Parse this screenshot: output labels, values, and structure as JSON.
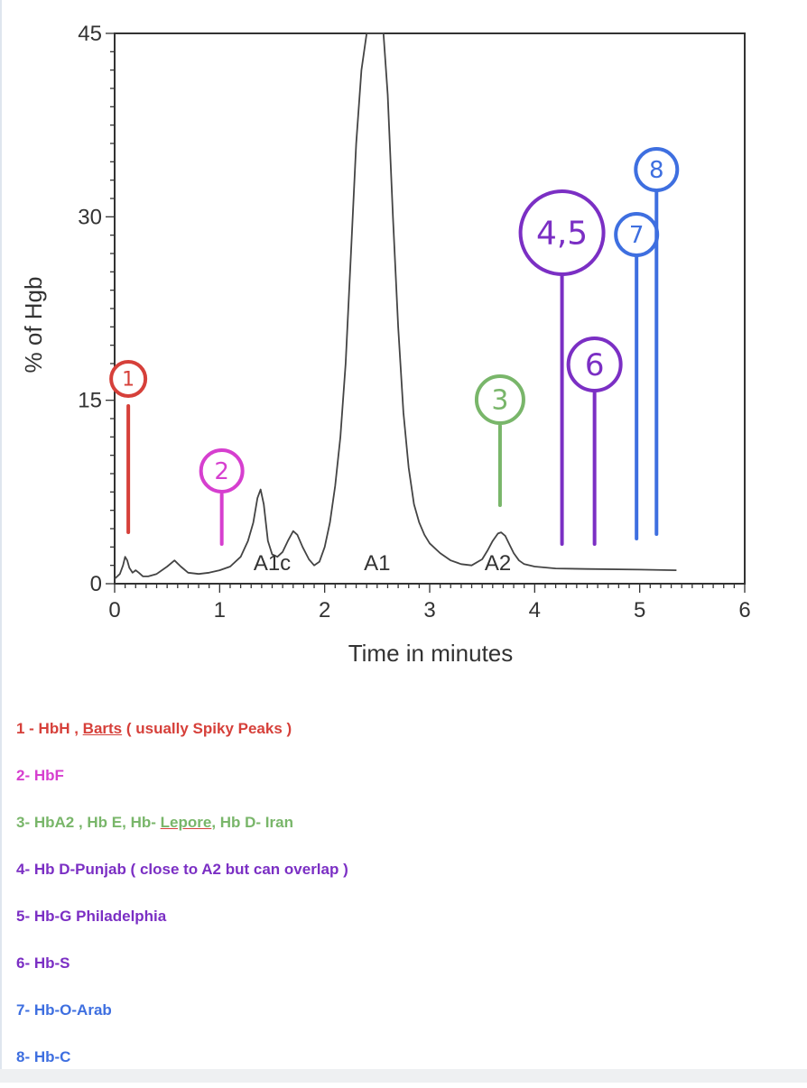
{
  "chart_data": {
    "type": "line",
    "xlabel": "Time in minutes",
    "ylabel": "% of Hgb",
    "xlim": [
      0,
      6
    ],
    "ylim": [
      0,
      45
    ],
    "xticks": [
      "0",
      "1",
      "2",
      "3",
      "4",
      "5",
      "6"
    ],
    "yticks": [
      "0",
      "15",
      "30",
      "45"
    ],
    "peak_labels": [
      {
        "text": "A1c",
        "x": 1.5
      },
      {
        "text": "A1",
        "x": 2.5
      },
      {
        "text": "A2",
        "x": 3.65
      }
    ],
    "series": [
      {
        "x": [
          0.0,
          0.05,
          0.08,
          0.1,
          0.12,
          0.14,
          0.17,
          0.2,
          0.23,
          0.27,
          0.32,
          0.4,
          0.5,
          0.57,
          0.63,
          0.7,
          0.8,
          0.9,
          1.0,
          1.1,
          1.2,
          1.27,
          1.32,
          1.36,
          1.39,
          1.42,
          1.46,
          1.5,
          1.55,
          1.6,
          1.65,
          1.7,
          1.74,
          1.79,
          1.85,
          1.9,
          1.95,
          2.0,
          2.05,
          2.1,
          2.15,
          2.2,
          2.25,
          2.3,
          2.35,
          2.4,
          2.42,
          2.56,
          2.6,
          2.65,
          2.7,
          2.75,
          2.8,
          2.85,
          2.9,
          2.95,
          3.0,
          3.1,
          3.2,
          3.3,
          3.4,
          3.5,
          3.55,
          3.6,
          3.65,
          3.68,
          3.72,
          3.76,
          3.8,
          3.85,
          3.9,
          4.0,
          4.2,
          4.5,
          5.0,
          5.35
        ],
        "values": [
          0.4,
          0.8,
          1.5,
          2.2,
          1.9,
          1.3,
          0.9,
          1.1,
          0.9,
          0.6,
          0.6,
          0.8,
          1.4,
          1.9,
          1.4,
          0.9,
          0.8,
          0.9,
          1.1,
          1.4,
          2.2,
          3.5,
          5.0,
          7.0,
          7.7,
          6.5,
          3.5,
          2.4,
          2.2,
          2.6,
          3.5,
          4.3,
          4.0,
          3.0,
          2.0,
          1.5,
          1.8,
          3.0,
          5.0,
          8.0,
          12.0,
          18.0,
          27.0,
          36.0,
          42.0,
          45.0,
          45.0,
          45.0,
          40.0,
          30.0,
          21.0,
          14.0,
          9.5,
          6.5,
          5.0,
          4.0,
          3.3,
          2.5,
          1.9,
          1.6,
          1.5,
          2.0,
          2.7,
          3.5,
          4.1,
          4.2,
          3.9,
          3.2,
          2.5,
          1.9,
          1.6,
          1.4,
          1.25,
          1.2,
          1.15,
          1.1
        ]
      }
    ],
    "markers": [
      {
        "label": "1",
        "x": 0.13,
        "color": "#d6403a"
      },
      {
        "label": "2",
        "x": 1.02,
        "color": "#d63fcf"
      },
      {
        "label": "3",
        "x": 3.67,
        "color": "#79b66a"
      },
      {
        "label": "4,5",
        "x": 4.26,
        "color": "#7b2fc4"
      },
      {
        "label": "6",
        "x": 4.57,
        "color": "#7b2fc4"
      },
      {
        "label": "7",
        "x": 4.97,
        "color": "#3e6fe0"
      },
      {
        "label": "8",
        "x": 5.16,
        "color": "#3e6fe0"
      }
    ]
  },
  "legend": {
    "items": [
      {
        "pre": "1 - HbH , ",
        "underlined": "Barts",
        "post": " ( usually Spiky Peaks )",
        "color": "#d6403a"
      },
      {
        "pre": "2- HbF",
        "underlined": "",
        "post": "",
        "color": "#d63fcf"
      },
      {
        "pre": "3- HbA2 , Hb E, Hb- ",
        "underlined": "Lepore",
        "post": ", Hb D- Iran",
        "color": "#79b66a"
      },
      {
        "pre": "4- Hb D-Punjab ( close to A2 but can overlap )",
        "underlined": "",
        "post": "",
        "color": "#7b2fc4"
      },
      {
        "pre": "5- Hb-G Philadelphia",
        "underlined": "",
        "post": "",
        "color": "#7b2fc4"
      },
      {
        "pre": "6- Hb-S",
        "underlined": "",
        "post": "",
        "color": "#7b2fc4"
      },
      {
        "pre": "7- Hb-O-Arab",
        "underlined": "",
        "post": "",
        "color": "#3e6fe0"
      },
      {
        "pre": "8- Hb-C",
        "underlined": "",
        "post": "",
        "color": "#3e6fe0"
      }
    ]
  }
}
